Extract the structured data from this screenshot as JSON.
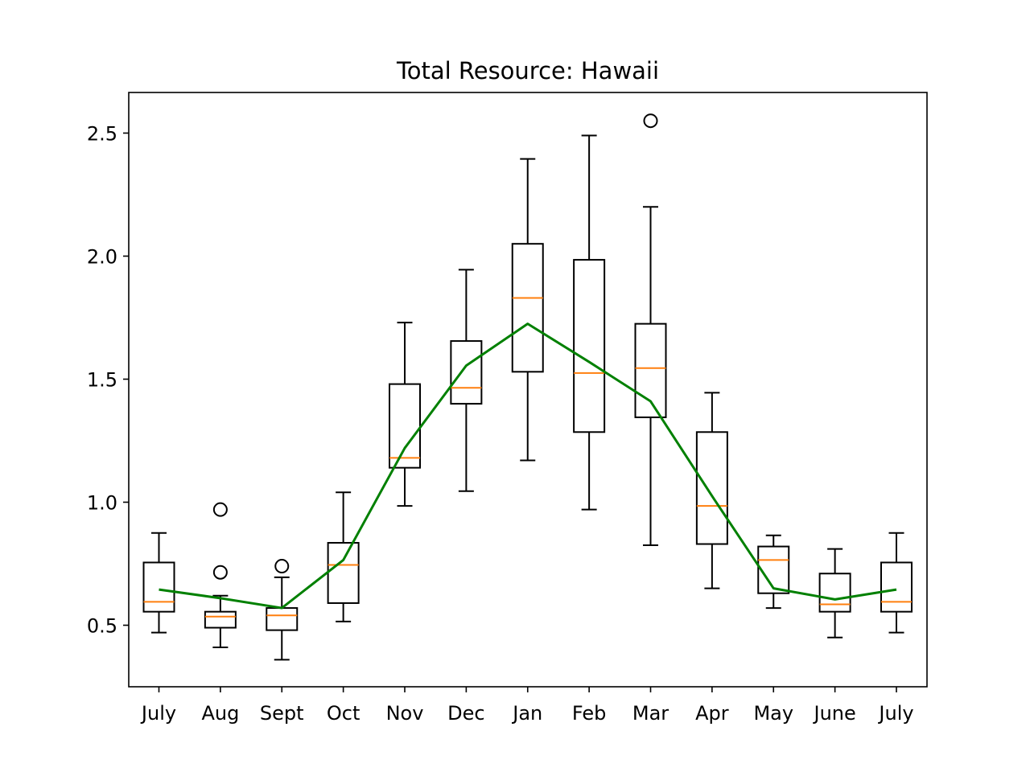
{
  "chart_data": {
    "type": "box",
    "title": "Total Resource: Hawaii",
    "xlabel": "",
    "ylabel": "",
    "categories": [
      "July",
      "Aug",
      "Sept",
      "Oct",
      "Nov",
      "Dec",
      "Jan",
      "Feb",
      "Mar",
      "Apr",
      "May",
      "June",
      "July"
    ],
    "ylim": [
      0.25,
      2.665
    ],
    "yticks": [
      0.5,
      1.0,
      1.5,
      2.0,
      2.5
    ],
    "ytick_labels": [
      "0.5",
      "1.0",
      "1.5",
      "2.0",
      "2.5"
    ],
    "grid": false,
    "legend": "none",
    "boxes": [
      {
        "whisker_low": 0.47,
        "q1": 0.555,
        "median": 0.595,
        "q3": 0.755,
        "whisker_high": 0.875,
        "outliers": []
      },
      {
        "whisker_low": 0.41,
        "q1": 0.49,
        "median": 0.535,
        "q3": 0.555,
        "whisker_high": 0.62,
        "outliers": [
          0.715,
          0.97
        ]
      },
      {
        "whisker_low": 0.36,
        "q1": 0.48,
        "median": 0.54,
        "q3": 0.57,
        "whisker_high": 0.695,
        "outliers": [
          0.74
        ]
      },
      {
        "whisker_low": 0.515,
        "q1": 0.59,
        "median": 0.745,
        "q3": 0.835,
        "whisker_high": 1.04,
        "outliers": []
      },
      {
        "whisker_low": 0.985,
        "q1": 1.14,
        "median": 1.18,
        "q3": 1.48,
        "whisker_high": 1.73,
        "outliers": []
      },
      {
        "whisker_low": 1.045,
        "q1": 1.4,
        "median": 1.465,
        "q3": 1.655,
        "whisker_high": 1.945,
        "outliers": []
      },
      {
        "whisker_low": 1.17,
        "q1": 1.53,
        "median": 1.83,
        "q3": 2.05,
        "whisker_high": 2.395,
        "outliers": []
      },
      {
        "whisker_low": 0.97,
        "q1": 1.285,
        "median": 1.525,
        "q3": 1.985,
        "whisker_high": 2.49,
        "outliers": []
      },
      {
        "whisker_low": 0.825,
        "q1": 1.345,
        "median": 1.545,
        "q3": 1.725,
        "whisker_high": 2.2,
        "outliers": [
          2.55
        ]
      },
      {
        "whisker_low": 0.65,
        "q1": 0.83,
        "median": 0.985,
        "q3": 1.285,
        "whisker_high": 1.445,
        "outliers": []
      },
      {
        "whisker_low": 0.57,
        "q1": 0.63,
        "median": 0.765,
        "q3": 0.82,
        "whisker_high": 0.865,
        "outliers": []
      },
      {
        "whisker_low": 0.45,
        "q1": 0.555,
        "median": 0.585,
        "q3": 0.71,
        "whisker_high": 0.81,
        "outliers": []
      },
      {
        "whisker_low": 0.47,
        "q1": 0.555,
        "median": 0.595,
        "q3": 0.755,
        "whisker_high": 0.875,
        "outliers": []
      }
    ],
    "series": [
      {
        "type": "line",
        "values": [
          0.645,
          0.61,
          0.57,
          0.765,
          1.22,
          1.555,
          1.725,
          1.57,
          1.41,
          1.025,
          0.65,
          0.605,
          0.645
        ]
      }
    ],
    "colors": {
      "box": "#000000",
      "median": "#ff7f0e",
      "line": "#008000",
      "frame": "#000000",
      "background": "#ffffff"
    }
  }
}
